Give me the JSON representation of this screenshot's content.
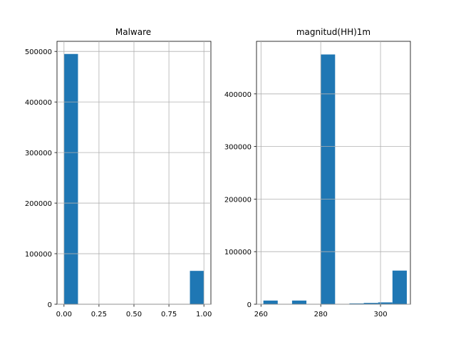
{
  "chart_data": [
    {
      "type": "bar",
      "title": "Malware",
      "xlabel": "",
      "ylabel": "",
      "xlim": [
        -0.05,
        1.05
      ],
      "ylim": [
        0,
        520000
      ],
      "grid": true,
      "bins": [
        {
          "x0": 0.0,
          "x1": 0.1,
          "count": 495000
        },
        {
          "x0": 0.1,
          "x1": 0.2,
          "count": 0
        },
        {
          "x0": 0.2,
          "x1": 0.3,
          "count": 0
        },
        {
          "x0": 0.3,
          "x1": 0.4,
          "count": 0
        },
        {
          "x0": 0.4,
          "x1": 0.5,
          "count": 0
        },
        {
          "x0": 0.5,
          "x1": 0.6,
          "count": 0
        },
        {
          "x0": 0.6,
          "x1": 0.7,
          "count": 0
        },
        {
          "x0": 0.7,
          "x1": 0.8,
          "count": 0
        },
        {
          "x0": 0.8,
          "x1": 0.9,
          "count": 0
        },
        {
          "x0": 0.9,
          "x1": 1.0,
          "count": 66000
        }
      ],
      "x_ticks": [
        {
          "value": 0.0,
          "label": "0.00"
        },
        {
          "value": 0.25,
          "label": "0.25"
        },
        {
          "value": 0.5,
          "label": "0.50"
        },
        {
          "value": 0.75,
          "label": "0.75"
        },
        {
          "value": 1.0,
          "label": "1.00"
        }
      ],
      "y_ticks": [
        {
          "value": 0,
          "label": "0"
        },
        {
          "value": 100000,
          "label": "100000"
        },
        {
          "value": 200000,
          "label": "200000"
        },
        {
          "value": 300000,
          "label": "300000"
        },
        {
          "value": 400000,
          "label": "400000"
        },
        {
          "value": 500000,
          "label": "500000"
        }
      ]
    },
    {
      "type": "bar",
      "title": "magnitud(HH)1m",
      "xlabel": "",
      "ylabel": "",
      "xlim": [
        258.5,
        310.0
      ],
      "ylim": [
        0,
        500000
      ],
      "grid": true,
      "bins": [
        {
          "x0": 260.8,
          "x1": 265.6,
          "count": 7000
        },
        {
          "x0": 265.6,
          "x1": 270.4,
          "count": 0
        },
        {
          "x0": 270.4,
          "x1": 275.2,
          "count": 7000
        },
        {
          "x0": 275.2,
          "x1": 280.0,
          "count": 0
        },
        {
          "x0": 280.0,
          "x1": 284.8,
          "count": 475000
        },
        {
          "x0": 284.8,
          "x1": 289.6,
          "count": 0
        },
        {
          "x0": 289.6,
          "x1": 294.4,
          "count": 1500
        },
        {
          "x0": 294.4,
          "x1": 299.2,
          "count": 2500
        },
        {
          "x0": 299.2,
          "x1": 304.0,
          "count": 3500
        },
        {
          "x0": 304.0,
          "x1": 308.8,
          "count": 64000
        }
      ],
      "x_ticks": [
        {
          "value": 260,
          "label": "260"
        },
        {
          "value": 280,
          "label": "280"
        },
        {
          "value": 300,
          "label": "300"
        }
      ],
      "y_ticks": [
        {
          "value": 0,
          "label": "0"
        },
        {
          "value": 100000,
          "label": "100000"
        },
        {
          "value": 200000,
          "label": "200000"
        },
        {
          "value": 300000,
          "label": "300000"
        },
        {
          "value": 400000,
          "label": "400000"
        }
      ]
    }
  ],
  "colors": {
    "bar": "#1f77b4",
    "grid": "#b0b0b0",
    "axis": "#000000"
  }
}
